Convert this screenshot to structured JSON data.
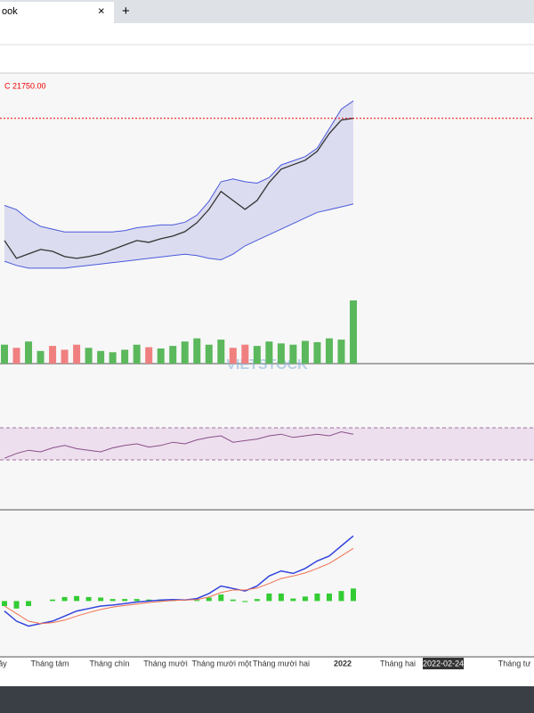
{
  "tab": {
    "title": "ook",
    "close": "×"
  },
  "new_tab": "+",
  "watermark": "VIETSTOCK",
  "time_axis": {
    "labels": [
      "ảy",
      "Tháng tám",
      "Tháng chín",
      "Tháng mười",
      "Tháng mười một",
      "Tháng mười hai",
      "2022",
      "Tháng hai",
      "2022-02-24",
      "Tháng tư"
    ]
  },
  "chart_data": [
    {
      "type": "band-line",
      "color": "#333333",
      "band_color": "#4a5adb",
      "last_price": {
        "value": 21750,
        "label": "C 21750.00"
      },
      "values": [
        12980,
        11700,
        12020,
        12340,
        12210,
        11830,
        11700,
        11830,
        12020,
        12340,
        12660,
        12980,
        12850,
        13110,
        13300,
        13620,
        14260,
        15220,
        16500,
        15860,
        15220,
        15860,
        17140,
        18100,
        18420,
        18740,
        19380,
        20660,
        21620,
        21750
      ],
      "upper": [
        15500,
        15200,
        14500,
        14000,
        13800,
        13600,
        13600,
        13600,
        13600,
        13600,
        13700,
        13900,
        14000,
        14100,
        14100,
        14300,
        14800,
        15800,
        17200,
        17400,
        17200,
        17100,
        17500,
        18400,
        18700,
        19000,
        19600,
        21000,
        22400,
        23000
      ],
      "lower": [
        11500,
        11200,
        11000,
        11000,
        11000,
        11000,
        11100,
        11200,
        11300,
        11400,
        11500,
        11600,
        11700,
        11800,
        11900,
        12000,
        11900,
        11700,
        11600,
        12000,
        12600,
        13000,
        13400,
        13800,
        14200,
        14600,
        15000,
        15200,
        15400,
        15600
      ],
      "ylim": [
        8500,
        24800
      ]
    },
    {
      "type": "bar",
      "up_color": "#5cb85c",
      "down_color": "#f08080",
      "values": [
        30,
        25,
        35,
        20,
        28,
        22,
        30,
        25,
        20,
        18,
        22,
        30,
        26,
        24,
        28,
        35,
        40,
        30,
        38,
        25,
        30,
        28,
        35,
        32,
        30,
        36,
        34,
        40,
        38,
        100
      ],
      "ylim": [
        0,
        110
      ]
    },
    {
      "type": "line",
      "color": "#8a4f8a",
      "band": [
        30,
        70
      ],
      "band_color": "#e6cfe6",
      "values": [
        32,
        38,
        42,
        40,
        45,
        48,
        44,
        42,
        40,
        45,
        48,
        50,
        46,
        48,
        52,
        50,
        55,
        58,
        60,
        52,
        54,
        56,
        60,
        62,
        58,
        60,
        62,
        60,
        65,
        62
      ],
      "ylim": [
        0,
        100
      ]
    },
    {
      "type": "macd",
      "series": [
        {
          "color": "#3344dd",
          "values": [
            -200,
            -400,
            -500,
            -450,
            -400,
            -300,
            -200,
            -150,
            -100,
            -80,
            -50,
            -20,
            0,
            20,
            30,
            20,
            50,
            150,
            300,
            250,
            200,
            300,
            500,
            600,
            550,
            650,
            800,
            900,
            1100,
            1300
          ]
        },
        {
          "color": "#f07050",
          "values": [
            -100,
            -250,
            -400,
            -450,
            -430,
            -380,
            -300,
            -230,
            -170,
            -120,
            -90,
            -60,
            -30,
            -10,
            10,
            20,
            30,
            80,
            170,
            220,
            220,
            260,
            350,
            450,
            500,
            560,
            650,
            750,
            900,
            1050
          ]
        }
      ],
      "histogram": {
        "color": "#33cc33",
        "values": [
          -100,
          -150,
          -100,
          0,
          30,
          80,
          100,
          80,
          70,
          40,
          40,
          40,
          30,
          30,
          20,
          0,
          20,
          70,
          130,
          30,
          -20,
          40,
          150,
          150,
          50,
          90,
          150,
          150,
          200,
          250
        ]
      },
      "ylim": [
        -900,
        1500
      ]
    }
  ]
}
